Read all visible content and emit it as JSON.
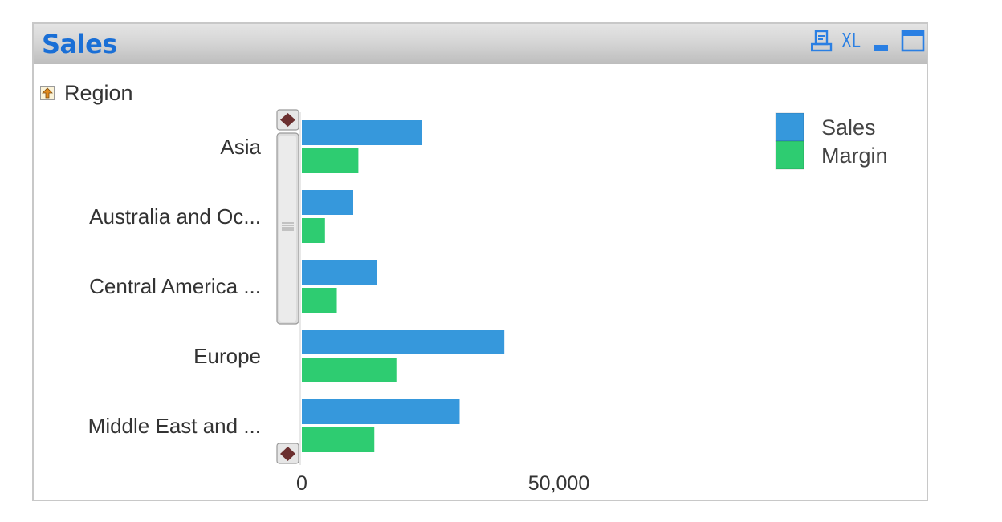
{
  "window": {
    "title": "Sales",
    "xl_label": "XL"
  },
  "dimension": {
    "label": "Region"
  },
  "chart_data": {
    "type": "bar",
    "orientation": "horizontal",
    "categories": [
      "Asia",
      "Australia and Oc...",
      "Central America ...",
      "Europe",
      "Middle East and ..."
    ],
    "series": [
      {
        "name": "Sales",
        "color": "#3698dc",
        "values": [
          23300,
          10000,
          14600,
          39400,
          30700
        ]
      },
      {
        "name": "Margin",
        "color": "#2ecc71",
        "values": [
          11000,
          4500,
          6800,
          18400,
          14100
        ]
      }
    ],
    "xlim": [
      0,
      120000
    ],
    "xticks": [
      {
        "value": 0,
        "label": "0"
      },
      {
        "value": 50000,
        "label": "50,000"
      }
    ],
    "legend_position": "top-right",
    "grid": false
  },
  "icons": {
    "print": "print-icon",
    "export": "xl-icon",
    "minimize": "minimize-icon",
    "maximize": "maximize-icon",
    "drill_up": "drill-up-icon",
    "scroll_up": "scroll-up-arrow-icon",
    "scroll_down": "scroll-down-arrow-icon"
  }
}
